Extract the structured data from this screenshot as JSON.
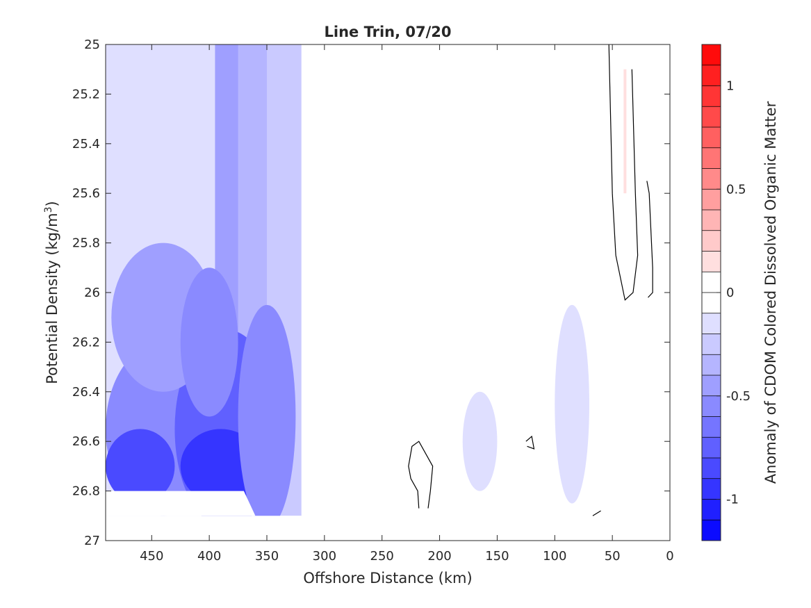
{
  "chart_data": {
    "type": "contour",
    "title": "Line Trin, 07/20",
    "xlabel": "Offshore Distance (km)",
    "ylabel_main": "Potential Density (kg/m",
    "ylabel_sup": "3",
    "ylabel_tail": ")",
    "colorbar_label": "Anomaly of CDOM Colored Dissolved Organic Matter",
    "x_axis": {
      "min": 0,
      "max": 490,
      "reversed": true,
      "ticks": [
        450,
        400,
        350,
        300,
        250,
        200,
        150,
        100,
        50,
        0
      ]
    },
    "y_axis": {
      "min": 25,
      "max": 27,
      "reversed": true,
      "ticks": [
        "25",
        "25.2",
        "25.4",
        "25.6",
        "25.8",
        "26",
        "26.2",
        "26.4",
        "26.6",
        "26.8",
        "27"
      ]
    },
    "colorbar": {
      "min": -1.2,
      "max": 1.2,
      "levels": 24,
      "ticks": [
        {
          "value": 1,
          "label": "1"
        },
        {
          "value": 0.5,
          "label": "0.5"
        },
        {
          "value": 0,
          "label": "0"
        },
        {
          "value": -0.5,
          "label": "-0.5"
        },
        {
          "value": -1,
          "label": "-1"
        }
      ]
    },
    "no_data_region": {
      "description_points_km_density": [
        [
          490,
          26.8
        ],
        [
          370,
          26.8
        ],
        [
          360,
          26.9
        ],
        [
          490,
          26.9
        ]
      ]
    },
    "data_extent": {
      "x_min": 20,
      "x_max": 490,
      "y_max": 26.9
    },
    "columns": [
      {
        "x_from": 490,
        "x_to": 395,
        "anomaly": -0.2
      },
      {
        "x_from": 395,
        "x_to": 375,
        "anomaly": -0.45
      },
      {
        "x_from": 375,
        "x_to": 350,
        "anomaly": -0.35
      },
      {
        "x_from": 350,
        "x_to": 320,
        "anomaly": -0.25
      },
      {
        "x_from": 320,
        "x_to": 255,
        "anomaly": -0.1
      },
      {
        "x_from": 255,
        "x_to": 205,
        "anomaly": 0
      },
      {
        "x_from": 205,
        "x_to": 150,
        "anomaly": -0.1
      },
      {
        "x_from": 150,
        "x_to": 115,
        "anomaly": 0
      },
      {
        "x_from": 115,
        "x_to": 20,
        "anomaly": -0.1
      }
    ],
    "blobs": [
      {
        "x": 440,
        "y": 26.55,
        "rx": 50,
        "ry": 0.35,
        "anomaly": -0.6
      },
      {
        "x": 460,
        "y": 26.7,
        "rx": 30,
        "ry": 0.15,
        "anomaly": -0.8
      },
      {
        "x": 385,
        "y": 26.55,
        "rx": 45,
        "ry": 0.4,
        "anomaly": -0.75
      },
      {
        "x": 390,
        "y": 26.7,
        "rx": 35,
        "ry": 0.15,
        "anomaly": -0.9
      },
      {
        "x": 350,
        "y": 26.5,
        "rx": 25,
        "ry": 0.45,
        "anomaly": -0.6
      },
      {
        "x": 440,
        "y": 26.1,
        "rx": 45,
        "ry": 0.3,
        "anomaly": -0.45
      },
      {
        "x": 400,
        "y": 26.2,
        "rx": 25,
        "ry": 0.3,
        "anomaly": -0.55
      },
      {
        "x": 200,
        "y": 26.75,
        "rx": 50,
        "ry": 0.15,
        "anomaly": 0
      },
      {
        "x": 125,
        "y": 26.7,
        "rx": 25,
        "ry": 0.12,
        "anomaly": 0
      },
      {
        "x": 165,
        "y": 26.6,
        "rx": 15,
        "ry": 0.2,
        "anomaly": -0.2
      },
      {
        "x": 85,
        "y": 26.45,
        "rx": 15,
        "ry": 0.4,
        "anomaly": -0.2
      },
      {
        "x": 55,
        "y": 25.3,
        "rx": 35,
        "ry": 0.3,
        "anomaly": 0
      },
      {
        "x": 40,
        "y": 25.7,
        "rx": 25,
        "ry": 0.35,
        "anomaly": 0
      }
    ],
    "zero_contours": [
      {
        "points": [
          [
            53,
            25
          ],
          [
            50,
            25.6
          ],
          [
            47,
            25.85
          ],
          [
            39,
            26.03
          ],
          [
            32,
            26.0
          ],
          [
            28,
            25.85
          ],
          [
            30,
            25.6
          ],
          [
            33,
            25.1
          ]
        ]
      },
      {
        "points": [
          [
            20,
            25.55
          ],
          [
            18,
            25.6
          ],
          [
            15,
            25.9
          ],
          [
            15,
            26.0
          ],
          [
            19,
            26.02
          ]
        ]
      },
      {
        "points": [
          [
            218,
            26.87
          ],
          [
            219,
            26.8
          ],
          [
            225,
            26.75
          ],
          [
            227,
            26.7
          ],
          [
            224,
            26.62
          ],
          [
            218,
            26.6
          ],
          [
            206,
            26.7
          ],
          [
            208,
            26.8
          ],
          [
            210,
            26.87
          ]
        ]
      },
      {
        "points": [
          [
            125,
            26.6
          ],
          [
            120,
            26.58
          ],
          [
            118,
            26.63
          ],
          [
            124,
            26.62
          ]
        ]
      },
      {
        "points": [
          [
            67,
            26.9
          ],
          [
            60,
            26.88
          ]
        ]
      }
    ],
    "pink_streak": {
      "x": 39,
      "y_from": 25.1,
      "y_to": 25.6,
      "anomaly": 0.15
    }
  }
}
